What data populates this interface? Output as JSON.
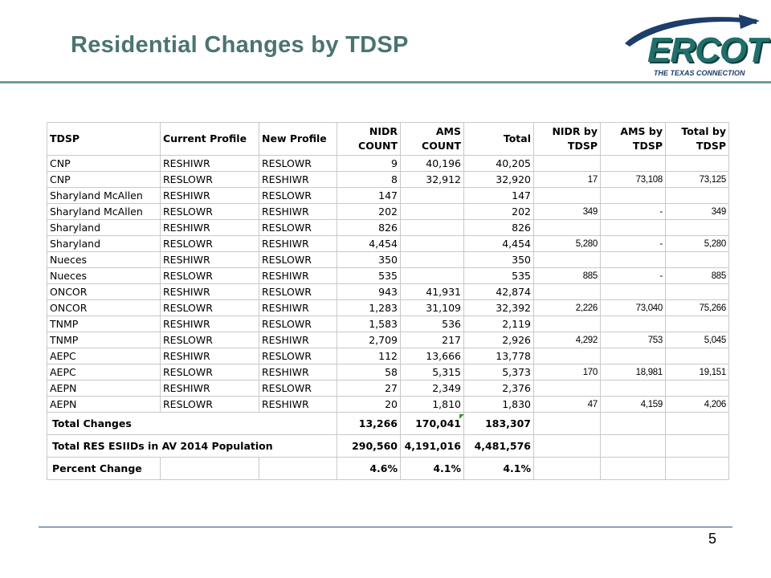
{
  "slide": {
    "title": "Residential Changes by TDSP",
    "page_number": "5"
  },
  "logo": {
    "word": "ERCOT",
    "tagline": "THE TEXAS CONNECTION",
    "colors": {
      "word": "#1f6f6b",
      "arc": "#1d3d6a",
      "tagline": "#1d3d6a"
    }
  },
  "colors": {
    "title": "#4a7470",
    "rule": "#6e9e9a",
    "footer_rule": "#2f4f7f",
    "grid": "#c9c9c9"
  },
  "table": {
    "headers": {
      "tdsp": "TDSP",
      "current_profile": "Current Profile",
      "new_profile": "New Profile",
      "nidr": [
        "NIDR",
        "COUNT"
      ],
      "ams": [
        "AMS",
        "COUNT"
      ],
      "total": "Total",
      "nidr_by": [
        "NIDR by",
        "TDSP"
      ],
      "ams_by": [
        "AMS by",
        "TDSP"
      ],
      "total_by": [
        "Total by",
        "TDSP"
      ]
    },
    "rows": [
      {
        "tdsp": "CNP",
        "current": "RESHIWR",
        "new": "RESLOWR",
        "nidr": "9",
        "ams": "40,196",
        "total": "40,205",
        "nidr_by": "",
        "ams_by": "",
        "total_by": ""
      },
      {
        "tdsp": "CNP",
        "current": "RESLOWR",
        "new": "RESHIWR",
        "nidr": "8",
        "ams": "32,912",
        "total": "32,920",
        "nidr_by": "17",
        "ams_by": "73,108",
        "total_by": "73,125"
      },
      {
        "tdsp": "Sharyland McAllen",
        "current": "RESHIWR",
        "new": "RESLOWR",
        "nidr": "147",
        "ams": "",
        "total": "147",
        "nidr_by": "",
        "ams_by": "",
        "total_by": ""
      },
      {
        "tdsp": "Sharyland McAllen",
        "current": "RESLOWR",
        "new": "RESHIWR",
        "nidr": "202",
        "ams": "",
        "total": "202",
        "nidr_by": "349",
        "ams_by": "-",
        "total_by": "349"
      },
      {
        "tdsp": "Sharyland",
        "current": "RESHIWR",
        "new": "RESLOWR",
        "nidr": "826",
        "ams": "",
        "total": "826",
        "nidr_by": "",
        "ams_by": "",
        "total_by": ""
      },
      {
        "tdsp": "Sharyland",
        "current": "RESLOWR",
        "new": "RESHIWR",
        "nidr": "4,454",
        "ams": "",
        "total": "4,454",
        "nidr_by": "5,280",
        "ams_by": "-",
        "total_by": "5,280"
      },
      {
        "tdsp": "Nueces",
        "current": "RESHIWR",
        "new": "RESLOWR",
        "nidr": "350",
        "ams": "",
        "total": "350",
        "nidr_by": "",
        "ams_by": "",
        "total_by": ""
      },
      {
        "tdsp": "Nueces",
        "current": "RESLOWR",
        "new": "RESHIWR",
        "nidr": "535",
        "ams": "",
        "total": "535",
        "nidr_by": "885",
        "ams_by": "-",
        "total_by": "885"
      },
      {
        "tdsp": "ONCOR",
        "current": "RESHIWR",
        "new": "RESLOWR",
        "nidr": "943",
        "ams": "41,931",
        "total": "42,874",
        "nidr_by": "",
        "ams_by": "",
        "total_by": ""
      },
      {
        "tdsp": "ONCOR",
        "current": "RESLOWR",
        "new": "RESHIWR",
        "nidr": "1,283",
        "ams": "31,109",
        "total": "32,392",
        "nidr_by": "2,226",
        "ams_by": "73,040",
        "total_by": "75,266"
      },
      {
        "tdsp": "TNMP",
        "current": "RESHIWR",
        "new": "RESLOWR",
        "nidr": "1,583",
        "ams": "536",
        "total": "2,119",
        "nidr_by": "",
        "ams_by": "",
        "total_by": ""
      },
      {
        "tdsp": "TNMP",
        "current": "RESLOWR",
        "new": "RESHIWR",
        "nidr": "2,709",
        "ams": "217",
        "total": "2,926",
        "nidr_by": "4,292",
        "ams_by": "753",
        "total_by": "5,045"
      },
      {
        "tdsp": "AEPC",
        "current": "RESHIWR",
        "new": "RESLOWR",
        "nidr": "112",
        "ams": "13,666",
        "total": "13,778",
        "nidr_by": "",
        "ams_by": "",
        "total_by": ""
      },
      {
        "tdsp": "AEPC",
        "current": "RESLOWR",
        "new": "RESHIWR",
        "nidr": "58",
        "ams": "5,315",
        "total": "5,373",
        "nidr_by": "170",
        "ams_by": "18,981",
        "total_by": "19,151"
      },
      {
        "tdsp": "AEPN",
        "current": "RESHIWR",
        "new": "RESLOWR",
        "nidr": "27",
        "ams": "2,349",
        "total": "2,376",
        "nidr_by": "",
        "ams_by": "",
        "total_by": ""
      },
      {
        "tdsp": "AEPN",
        "current": "RESLOWR",
        "new": "RESHIWR",
        "nidr": "20",
        "ams": "1,810",
        "total": "1,830",
        "nidr_by": "47",
        "ams_by": "4,159",
        "total_by": "4,206"
      }
    ],
    "summary": {
      "total_changes": {
        "label": "Total Changes",
        "nidr": "13,266",
        "ams": "170,041",
        "total": "183,307"
      },
      "population": {
        "label": "Total RES ESIIDs in AV 2014 Population",
        "nidr": "290,560",
        "ams": "4,191,016",
        "total": "4,481,576"
      },
      "percent": {
        "label": "Percent Change",
        "nidr": "4.6%",
        "ams": "4.1%",
        "total": "4.1%"
      }
    }
  }
}
